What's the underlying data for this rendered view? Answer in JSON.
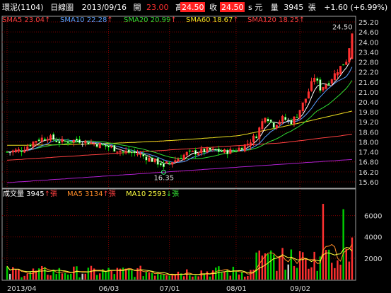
{
  "header": {
    "stock": "環泥(1104)",
    "period": "日線圖",
    "date": "2013/09/16",
    "open_label": "開",
    "open": "23.00",
    "high_label": "高",
    "high": "24.50",
    "close_label": "收",
    "close": "24.50",
    "currency": "s 元",
    "vol_label": "量",
    "vol": "3945",
    "vol_unit": "張",
    "change": "+1.60 (+6.99%)"
  },
  "indicators": [
    {
      "label": "SMA5 23.04",
      "arrow": "↑",
      "color": "#ff4040"
    },
    {
      "label": "SMA10 22.28",
      "arrow": "↑",
      "color": "#5aa0ff"
    },
    {
      "label": "SMA20 20.99",
      "arrow": "↑",
      "color": "#33dd33"
    },
    {
      "label": "SMA60 18.67",
      "arrow": "↑",
      "color": "#f0e020"
    },
    {
      "label": "SMA120 18.25",
      "arrow": "↑",
      "color": "#ff4040"
    }
  ],
  "vol_header": [
    {
      "label": "成交量 3945",
      "arrow": "↑張",
      "color": "#ffffff",
      "arrow_color": "#ff4040"
    },
    {
      "label": "MA5 3134",
      "arrow": "↑張",
      "color": "#ff8c28",
      "arrow_color": "#ff4040"
    },
    {
      "label": "MA10 2593",
      "arrow": "↓張",
      "color": "#ffff40",
      "arrow_color": "#33dd33"
    }
  ],
  "annotations": {
    "high_label": "24.50",
    "low_label": "16.35"
  },
  "colors": {
    "up": "#ff3030",
    "down": "#00cc00",
    "even": "#cccccc",
    "grid": "#7a0000",
    "frame": "#a0a0a0"
  },
  "chart_data": {
    "type": "candlestick",
    "price_axis": {
      "ticks": [
        "25.20",
        "24.60",
        "24.00",
        "23.40",
        "22.80",
        "22.20",
        "21.60",
        "21.00",
        "20.40",
        "19.80",
        "19.20",
        "18.60",
        "18.00",
        "17.40",
        "16.80",
        "16.20",
        "15.60"
      ],
      "ylim": [
        15.3,
        25.5
      ]
    },
    "volume_axis": {
      "ticks": [
        "6000",
        "4000",
        "2000"
      ],
      "ylim": [
        0,
        7500
      ]
    },
    "x_ticks": [
      {
        "label": "2013/04",
        "index": 0
      },
      {
        "label": "06/03",
        "index": 35
      },
      {
        "label": "07/01",
        "index": 56
      },
      {
        "label": "08/01",
        "index": 79
      },
      {
        "label": "09/02",
        "index": 101
      }
    ],
    "ohlc": [],
    "volume": [],
    "sma5": [],
    "sma10": [],
    "sma20": [],
    "sma60": [],
    "sma120": [],
    "sma_long": [],
    "vol_ma5": [],
    "vol_ma10": []
  }
}
